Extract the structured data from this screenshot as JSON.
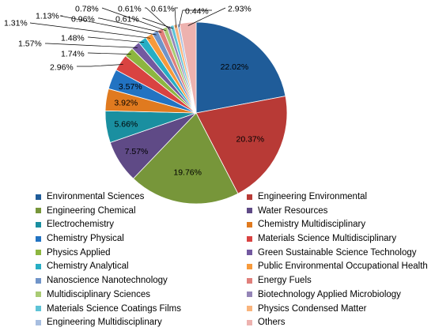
{
  "chart_data": {
    "type": "pie",
    "start": "12 o'clock",
    "direction": "clockwise",
    "slices": [
      {
        "label": "Environmental Sciences",
        "value": 22.02,
        "display": "22.02%",
        "color": "#1F5C99"
      },
      {
        "label": "Engineering Environmental",
        "value": 20.37,
        "display": "20.37%",
        "color": "#B83A36"
      },
      {
        "label": "Engineering Chemical",
        "value": 19.76,
        "display": "19.76%",
        "color": "#77963A"
      },
      {
        "label": "Water Resources",
        "value": 7.57,
        "display": "7.57%",
        "color": "#5F4A86"
      },
      {
        "label": "Electrochemistry",
        "value": 5.66,
        "display": "5.66%",
        "color": "#1A8FA0"
      },
      {
        "label": "Chemistry Multidisciplinary",
        "value": 3.92,
        "display": "3.92%",
        "color": "#E07A1F"
      },
      {
        "label": "Chemistry Physical",
        "value": 3.57,
        "display": "3.57%",
        "color": "#2273C2"
      },
      {
        "label": "Materials Science Multidisciplinary",
        "value": 2.96,
        "display": "2.96%",
        "color": "#D94341"
      },
      {
        "label": "Physics Applied",
        "value": 1.74,
        "display": "1.74%",
        "color": "#8DB640"
      },
      {
        "label": "Green Sustainable Science Technology",
        "value": 1.57,
        "display": "1.57%",
        "color": "#7359A0"
      },
      {
        "label": "Chemistry Analytical",
        "value": 1.48,
        "display": "1.48%",
        "color": "#27AEC4"
      },
      {
        "label": "Public Environmental Occupational Health",
        "value": 1.31,
        "display": "1.31%",
        "color": "#F79A3B"
      },
      {
        "label": "Nanoscience Nanotechnology",
        "value": 1.13,
        "display": "1.13%",
        "color": "#7094C9"
      },
      {
        "label": "Energy Fuels",
        "value": 0.96,
        "display": "0.96%",
        "color": "#E07F7B"
      },
      {
        "label": "Multidisciplinary Sciences",
        "value": 0.78,
        "display": "0.78%",
        "color": "#A9CB74"
      },
      {
        "label": "Biotechnology Applied Microbiology",
        "value": 0.61,
        "display": "0.61%",
        "color": "#9485B7"
      },
      {
        "label": "Materials Science Coatings Films",
        "value": 0.61,
        "display": "0.61%",
        "color": "#5EC3D6"
      },
      {
        "label": "Physics Condensed Matter",
        "value": 0.61,
        "display": "0.61%",
        "color": "#F9B47C"
      },
      {
        "label": "Engineering Multidisciplinary",
        "value": 0.44,
        "display": "0.44%",
        "color": "#A7BEE0"
      },
      {
        "label": "Others",
        "value": 2.93,
        "display": "2.93%",
        "color": "#EDB2AF"
      }
    ],
    "legend_position": "bottom"
  }
}
